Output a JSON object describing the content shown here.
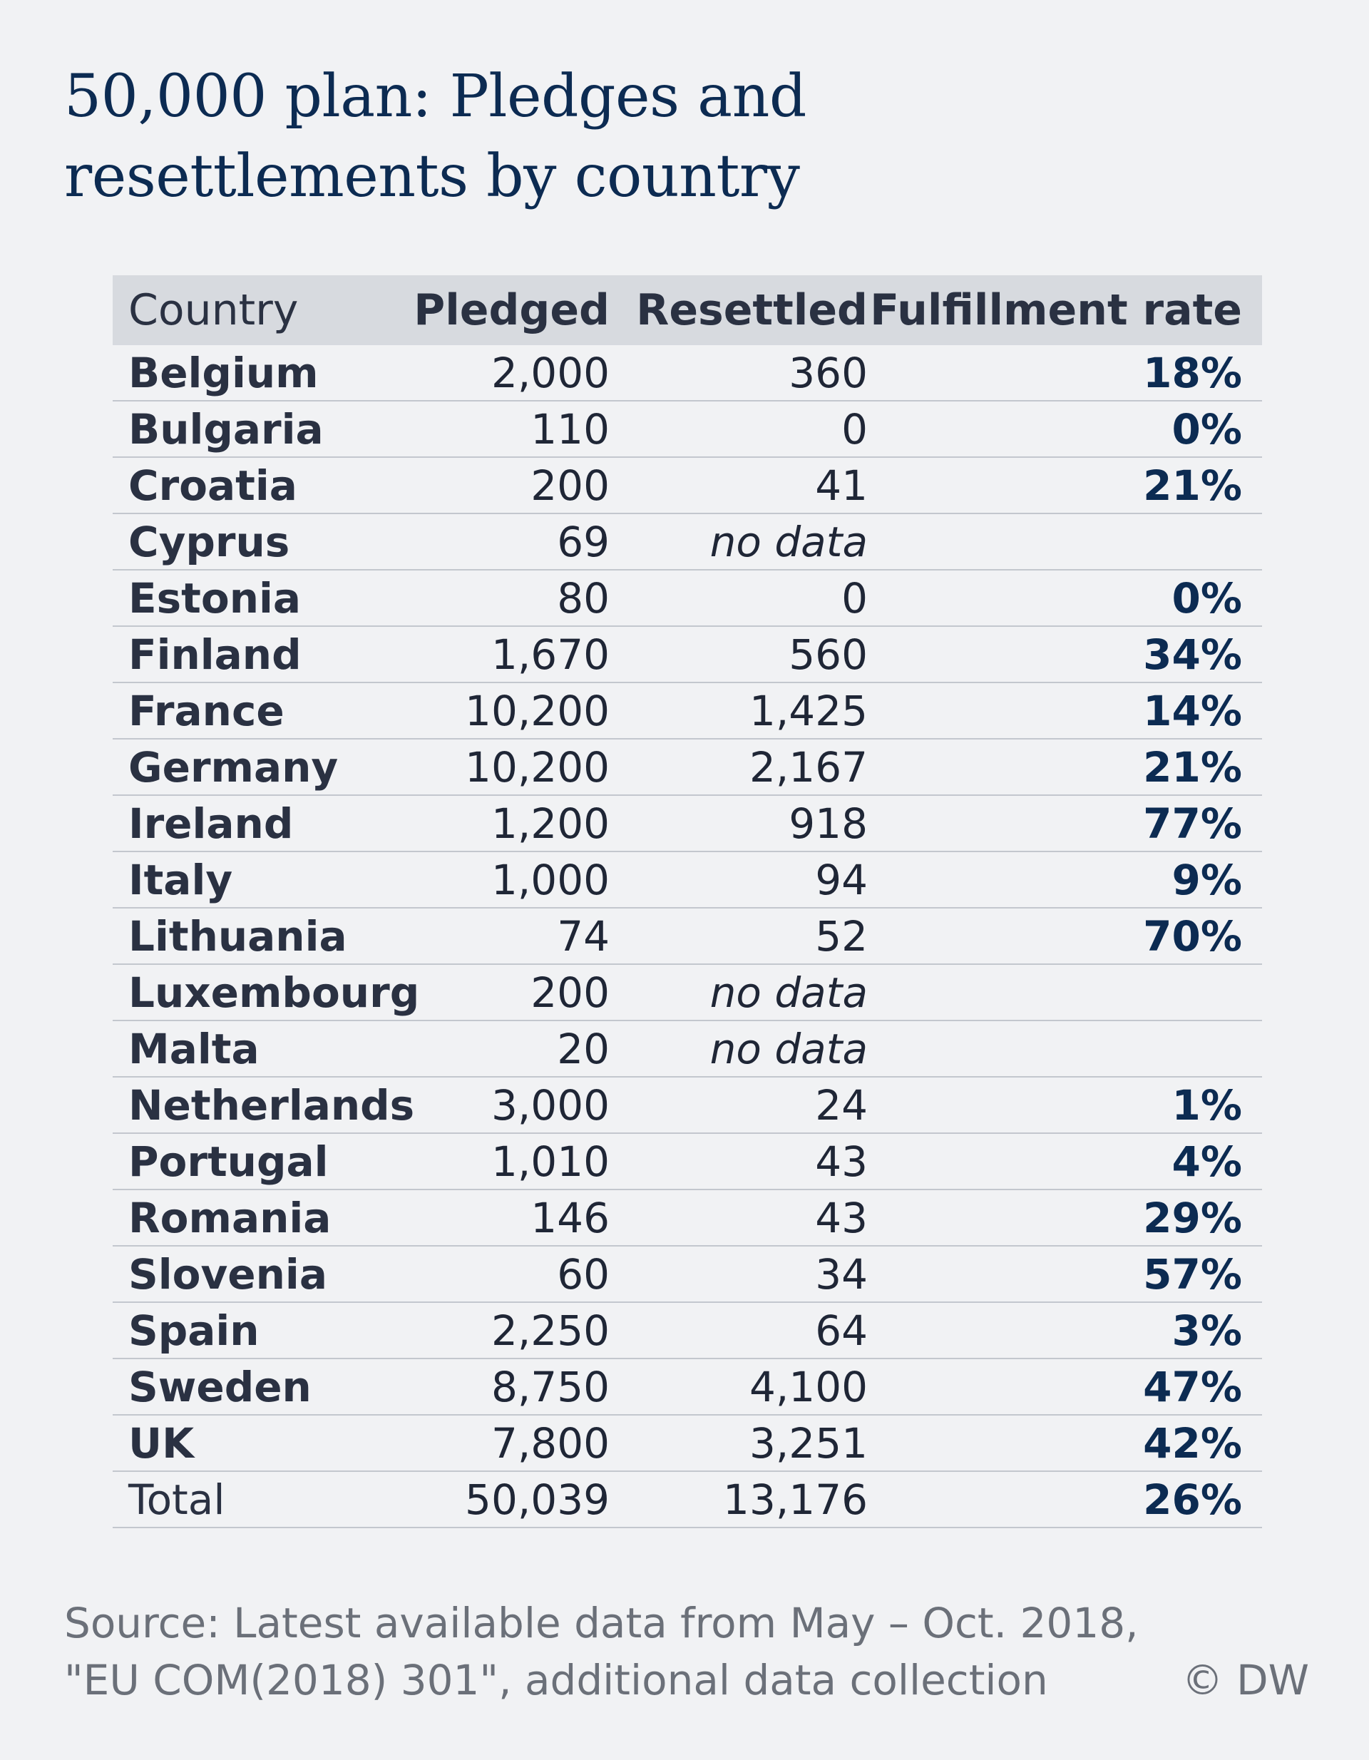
{
  "title": {
    "line1": "50,000 plan: Pledges and",
    "line2": "resettlements by country"
  },
  "chart_data": {
    "type": "table",
    "columns": [
      "Country",
      "Pledged",
      "Resettled",
      "Fulfillment rate"
    ],
    "rows": [
      {
        "country": "Belgium",
        "pledged": "2,000",
        "resettled": "360",
        "rate": "18%"
      },
      {
        "country": "Bulgaria",
        "pledged": "110",
        "resettled": "0",
        "rate": "0%"
      },
      {
        "country": "Croatia",
        "pledged": "200",
        "resettled": "41",
        "rate": "21%"
      },
      {
        "country": "Cyprus",
        "pledged": "69",
        "resettled": "no data",
        "rate": ""
      },
      {
        "country": "Estonia",
        "pledged": "80",
        "resettled": "0",
        "rate": "0%"
      },
      {
        "country": "Finland",
        "pledged": "1,670",
        "resettled": "560",
        "rate": "34%"
      },
      {
        "country": "France",
        "pledged": "10,200",
        "resettled": "1,425",
        "rate": "14%"
      },
      {
        "country": "Germany",
        "pledged": "10,200",
        "resettled": "2,167",
        "rate": "21%"
      },
      {
        "country": "Ireland",
        "pledged": "1,200",
        "resettled": "918",
        "rate": "77%"
      },
      {
        "country": "Italy",
        "pledged": "1,000",
        "resettled": "94",
        "rate": "9%"
      },
      {
        "country": "Lithuania",
        "pledged": "74",
        "resettled": "52",
        "rate": "70%"
      },
      {
        "country": "Luxembourg",
        "pledged": "200",
        "resettled": "no data",
        "rate": ""
      },
      {
        "country": "Malta",
        "pledged": "20",
        "resettled": "no data",
        "rate": ""
      },
      {
        "country": "Netherlands",
        "pledged": "3,000",
        "resettled": "24",
        "rate": "1%"
      },
      {
        "country": "Portugal",
        "pledged": "1,010",
        "resettled": "43",
        "rate": "4%"
      },
      {
        "country": "Romania",
        "pledged": "146",
        "resettled": "43",
        "rate": "29%"
      },
      {
        "country": "Slovenia",
        "pledged": "60",
        "resettled": "34",
        "rate": "57%"
      },
      {
        "country": "Spain",
        "pledged": "2,250",
        "resettled": "64",
        "rate": "3%"
      },
      {
        "country": "Sweden",
        "pledged": "8,750",
        "resettled": "4,100",
        "rate": "47%"
      },
      {
        "country": "UK",
        "pledged": "7,800",
        "resettled": "3,251",
        "rate": "42%"
      }
    ],
    "total": {
      "country": "Total",
      "pledged": "50,039",
      "resettled": "13,176",
      "rate": "26%"
    }
  },
  "source": {
    "line1": "Source: Latest available data from May – Oct. 2018,",
    "line2": "\"EU COM(2018) 301\", additional data collection"
  },
  "credit": "© DW",
  "colors": {
    "background": "#f1f2f4",
    "title": "#0c2b52",
    "header_background": "#d7dadf",
    "text": "#2a3142",
    "source": "#6b7079"
  }
}
